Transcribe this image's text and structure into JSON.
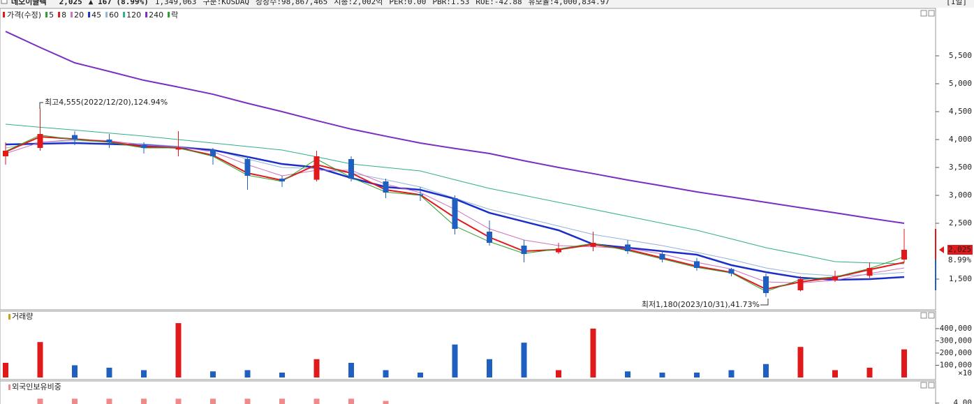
{
  "header": {
    "items": [
      {
        "text": "데오이글텍",
        "color": "#000000"
      },
      {
        "text": "2,025",
        "color": "#e0191a"
      },
      {
        "text": "▲ 167 (8.99%)",
        "color": "#e0191a"
      },
      {
        "text": "1,349,063",
        "color": "#222222"
      },
      {
        "text": "구분:KOSDAQ",
        "color": "#222222"
      },
      {
        "text": "상장수:98,867,465",
        "color": "#222222"
      },
      {
        "text": "시총:2,002억",
        "color": "#222222"
      },
      {
        "text": "PER:0.00",
        "color": "#222222"
      },
      {
        "text": "PBR:1.53",
        "color": "#222222"
      },
      {
        "text": "ROE:-42.88",
        "color": "#222222"
      },
      {
        "text": "유보율:4,000,834.97",
        "color": "#222222"
      }
    ],
    "period": "[1일]"
  },
  "chart_data": [
    {
      "type": "candlestick",
      "name": "가격(수정)",
      "up_color": "#e0191a",
      "down_color": "#1f5fbf",
      "categories": [
        null,
        null,
        null,
        null,
        null,
        null,
        null,
        null,
        null,
        null,
        null,
        null,
        null,
        null,
        null,
        null,
        null,
        null,
        null,
        null,
        null,
        null,
        null,
        null,
        null,
        null,
        null
      ],
      "open": [
        3700,
        3850,
        4080,
        4000,
        3900,
        3820,
        3820,
        3650,
        3300,
        3280,
        3650,
        3250,
        3020,
        2950,
        2350,
        2100,
        1980,
        2080,
        2120,
        1950,
        1820,
        1680,
        1550,
        1300,
        1480,
        1560,
        1850
      ],
      "high": [
        3950,
        4555,
        4150,
        4100,
        3950,
        4150,
        3850,
        3700,
        3350,
        3800,
        3700,
        3300,
        3150,
        3000,
        2550,
        2200,
        2150,
        2350,
        2200,
        2000,
        1880,
        1700,
        1600,
        1550,
        1650,
        1800,
        2400
      ],
      "low": [
        3550,
        3800,
        3900,
        3850,
        3750,
        3700,
        3550,
        3100,
        3150,
        3250,
        3250,
        2950,
        2900,
        2300,
        2100,
        1800,
        1950,
        2000,
        1950,
        1800,
        1650,
        1550,
        1180,
        1280,
        1450,
        1520,
        1800
      ],
      "close": [
        3800,
        4100,
        4000,
        3950,
        3850,
        3850,
        3700,
        3350,
        3250,
        3700,
        3300,
        3050,
        3000,
        2400,
        2150,
        1950,
        2050,
        2150,
        2000,
        1850,
        1700,
        1600,
        1250,
        1500,
        1550,
        1700,
        2025
      ],
      "series": [
        {
          "name": "5",
          "color": "#2aa02a",
          "width": 1,
          "values": [
            3790,
            4080,
            4000,
            3950,
            3850,
            3850,
            3700,
            3360,
            3250,
            3650,
            3320,
            3060,
            3000,
            2450,
            2170,
            1960,
            2040,
            2140,
            2010,
            1860,
            1710,
            1610,
            1280,
            1490,
            1540,
            1690,
            1900
          ]
        },
        {
          "name": "8",
          "color": "#e0191a",
          "width": 2,
          "values": [
            3780,
            4050,
            4010,
            3960,
            3870,
            3850,
            3720,
            3400,
            3270,
            3550,
            3400,
            3100,
            3010,
            2600,
            2250,
            2000,
            2030,
            2120,
            2030,
            1880,
            1730,
            1620,
            1320,
            1450,
            1530,
            1670,
            1800
          ]
        },
        {
          "name": "20",
          "color": "#d070c0",
          "width": 1,
          "values": [
            3750,
            3950,
            4000,
            3980,
            3900,
            3870,
            3780,
            3550,
            3350,
            3450,
            3450,
            3200,
            3050,
            2750,
            2400,
            2200,
            2100,
            2080,
            2050,
            1950,
            1800,
            1680,
            1450,
            1430,
            1480,
            1600,
            1700
          ]
        },
        {
          "name": "45",
          "color": "#1a2fc8",
          "width": 2.5,
          "values": [
            3912,
            3925,
            3937,
            3920,
            3900,
            3860,
            3812,
            3690,
            3562,
            3500,
            3312,
            3150,
            3100,
            2937,
            2687,
            2530,
            2375,
            2125,
            2062,
            2000,
            1937,
            1750,
            1625,
            1525,
            1487,
            1500,
            1537
          ]
        },
        {
          "name": "60",
          "color": "#8fb3d9",
          "width": 1,
          "values": [
            3850,
            3950,
            3980,
            3960,
            3920,
            3880,
            3820,
            3650,
            3500,
            3480,
            3400,
            3280,
            3150,
            2950,
            2750,
            2600,
            2450,
            2300,
            2200,
            2100,
            1980,
            1850,
            1700,
            1600,
            1560,
            1580,
            1620
          ]
        },
        {
          "name": "120",
          "color": "#2fae8e",
          "width": 1,
          "values": [
            4275,
            4220,
            4170,
            4115,
            4062,
            4000,
            3937,
            3875,
            3812,
            3690,
            3562,
            3500,
            3437,
            3280,
            3125,
            3000,
            2875,
            2750,
            2625,
            2500,
            2375,
            2220,
            2062,
            1940,
            1812,
            1790,
            1775
          ]
        },
        {
          "name": "240",
          "color": "#7a2fc0",
          "width": 2,
          "values": [
            5937,
            5650,
            5375,
            5220,
            5062,
            4940,
            4812,
            4650,
            4500,
            4340,
            4187,
            4060,
            3937,
            3840,
            3750,
            3620,
            3500,
            3390,
            3275,
            3170,
            3062,
            2970,
            2875,
            2780,
            2687,
            2590,
            2500
          ]
        }
      ],
      "legend_extra": "락",
      "ylim": [
        962.5,
        6325
      ],
      "yticks": [
        {
          "value": 1500,
          "label": "1,500"
        },
        {
          "value": 2500,
          "label": "2,500"
        },
        {
          "value": 3000,
          "label": "3,000"
        },
        {
          "value": 3500,
          "label": "3,500"
        },
        {
          "value": 4000,
          "label": "4,000"
        },
        {
          "value": 4500,
          "label": "4,500"
        },
        {
          "value": 5000,
          "label": "5,000"
        },
        {
          "value": 5500,
          "label": "5,500"
        }
      ],
      "annotations": [
        "최고4,555(2022/12/20),124.94%",
        "최저1,180(2023/10/31),41.73%"
      ],
      "price_tag": "2,025",
      "price_tag_change": "8.99%"
    },
    {
      "type": "bar",
      "title": "거래량",
      "values": [
        120000,
        290000,
        100000,
        80000,
        60000,
        445000,
        50000,
        60000,
        40000,
        150000,
        120000,
        60000,
        40000,
        270000,
        150000,
        285000,
        60000,
        400000,
        50000,
        40000,
        40000,
        60000,
        110000,
        250000,
        60000,
        80000,
        230000
      ],
      "ylim": [
        0,
        474000
      ],
      "yticks": [
        {
          "value": 100000,
          "label": "100,000"
        },
        {
          "value": 200000,
          "label": "200,000"
        },
        {
          "value": 300000,
          "label": "300,000"
        },
        {
          "value": 400000,
          "label": "400,000"
        }
      ],
      "axis_unit": "×10"
    },
    {
      "type": "bar",
      "title": "외국인보유비중",
      "color": "#f08a8a",
      "values": [
        null,
        4.2,
        4.2,
        4.2,
        4.2,
        4.2,
        4.2,
        4.2,
        4.2,
        4.2,
        4.2,
        4.1,
        null,
        null,
        null,
        null,
        null,
        null,
        null,
        null,
        null,
        null,
        null,
        null,
        null,
        null,
        null
      ],
      "ylim": [
        3.3,
        4.4
      ],
      "yticks": [
        {
          "value": 4,
          "label": "4.00"
        }
      ]
    }
  ]
}
